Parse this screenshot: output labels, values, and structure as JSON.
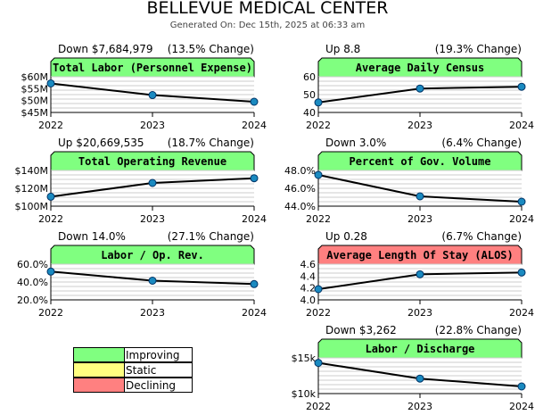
{
  "title": "BELLEVUE MEDICAL CENTER",
  "subtitle": "Generated On: Dec 15th, 2025 at 06:33 am",
  "colors": {
    "improving": "#80ff80",
    "static": "#ffff80",
    "declining": "#ff8080",
    "point": "#1a8ac0",
    "line": "#000000"
  },
  "legend": [
    {
      "label": "Improving",
      "status": "improving"
    },
    {
      "label": "Static",
      "status": "static"
    },
    {
      "label": "Declining",
      "status": "declining"
    }
  ],
  "chart_data": [
    {
      "type": "line",
      "title": "Total Labor (Personnel Expense)",
      "status": "improving",
      "change": "Down $7,684,979",
      "pct": "(13.5% Change)",
      "x": [
        "2022",
        "2023",
        "2024"
      ],
      "values": [
        57.2,
        52.3,
        49.5
      ],
      "ylim": [
        45,
        60
      ],
      "yticks": [
        45,
        50,
        55,
        60
      ],
      "yticklabels": [
        "$45M",
        "$50M",
        "$55M",
        "$60M"
      ]
    },
    {
      "type": "line",
      "title": "Average Daily Census",
      "status": "improving",
      "change": "Up 8.8",
      "pct": "(19.3% Change)",
      "x": [
        "2022",
        "2023",
        "2024"
      ],
      "values": [
        45.6,
        53.4,
        54.4
      ],
      "ylim": [
        40,
        60
      ],
      "yticks": [
        40,
        50,
        60
      ],
      "yticklabels": [
        "40",
        "50",
        "60"
      ]
    },
    {
      "type": "line",
      "title": "Total Operating Revenue",
      "status": "improving",
      "change": "Up $20,669,535",
      "pct": "(18.7% Change)",
      "x": [
        "2022",
        "2023",
        "2024"
      ],
      "values": [
        110.6,
        126.0,
        131.3
      ],
      "ylim": [
        100,
        140
      ],
      "yticks": [
        100,
        120,
        140
      ],
      "yticklabels": [
        "$100M",
        "$120M",
        "$140M"
      ]
    },
    {
      "type": "line",
      "title": "Percent of Gov. Volume",
      "status": "improving",
      "change": "Down 3.0%",
      "pct": "(6.4% Change)",
      "x": [
        "2022",
        "2023",
        "2024"
      ],
      "values": [
        47.5,
        45.1,
        44.5
      ],
      "ylim": [
        44,
        48
      ],
      "yticks": [
        44,
        46,
        48
      ],
      "yticklabels": [
        "44.0%",
        "46.0%",
        "48.0%"
      ]
    },
    {
      "type": "line",
      "title": "Labor / Op. Rev.",
      "status": "improving",
      "change": "Down 14.0%",
      "pct": "(27.1% Change)",
      "x": [
        "2022",
        "2023",
        "2024"
      ],
      "values": [
        51.7,
        41.5,
        37.7
      ],
      "ylim": [
        20,
        60
      ],
      "yticks": [
        20,
        40,
        60
      ],
      "yticklabels": [
        "20.0%",
        "40.0%",
        "60.0%"
      ]
    },
    {
      "type": "line",
      "title": "Average Length Of Stay (ALOS)",
      "status": "declining",
      "change": "Up 0.28",
      "pct": "(6.7% Change)",
      "x": [
        "2022",
        "2023",
        "2024"
      ],
      "values": [
        4.18,
        4.43,
        4.46
      ],
      "ylim": [
        4.0,
        4.6
      ],
      "yticks": [
        4.0,
        4.2,
        4.4,
        4.6
      ],
      "yticklabels": [
        "4.0",
        "4.2",
        "4.4",
        "4.6"
      ]
    },
    {
      "type": "line",
      "title": "Labor / Discharge",
      "status": "improving",
      "change": "Down $3,262",
      "pct": "(22.8% Change)",
      "x": [
        "2022",
        "2023",
        "2024"
      ],
      "values": [
        14.3,
        12.1,
        11.0
      ],
      "ylim": [
        10,
        15
      ],
      "yticks": [
        10,
        15
      ],
      "yticklabels": [
        "$10k",
        "$15k"
      ]
    }
  ]
}
